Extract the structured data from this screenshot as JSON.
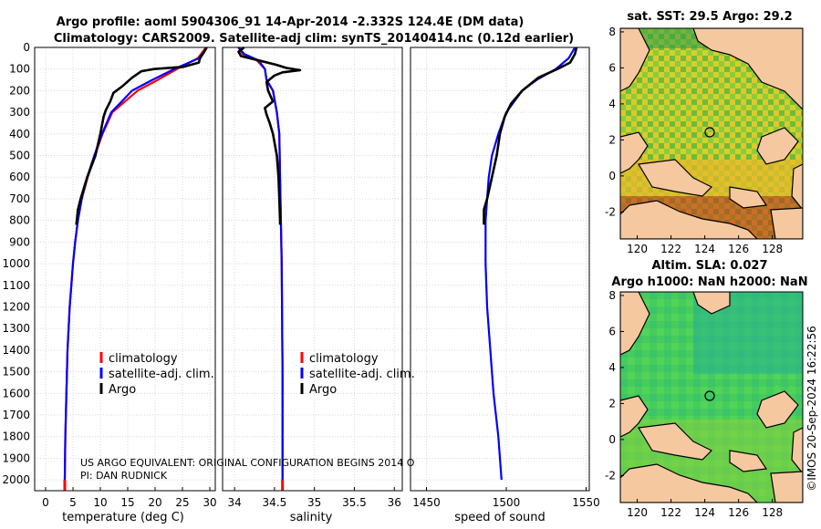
{
  "figure": {
    "title_line1": "Argo profile: aoml 5904306_91 14-Apr-2014 -2.332S 124.4E (DM data)",
    "title_line2": "Climatology: CARS2009. Satellite-adj clim: synTS_20140414.nc (0.12d earlier)",
    "note_line1": "US ARGO EQUIVALENT: ORIGINAL CONFIGURATION BEGINS 2014 O",
    "note_line2": "PI: DAN RUDNICK",
    "copyright": "©IMOS 20-Sep-2024 16:22:56"
  },
  "legend": {
    "climatology": "climatology",
    "satellite": "satellite-adj. clim.",
    "argo": "Argo"
  },
  "colors": {
    "climatology": "#ff0000",
    "satellite": "#0000ff",
    "argo": "#000000",
    "land": "#f5c8a0",
    "sla_sea": "#3cc864"
  },
  "chart_data": [
    {
      "type": "line",
      "name": "temperature",
      "xlabel": "temperature (deg C)",
      "ylabel": "",
      "xlim": [
        -2,
        31
      ],
      "ylim": [
        2050,
        0
      ],
      "xticks": [
        0,
        5,
        10,
        15,
        20,
        25,
        30
      ],
      "yticks": [
        0,
        100,
        200,
        300,
        400,
        500,
        600,
        700,
        800,
        900,
        1000,
        1100,
        1200,
        1300,
        1400,
        1500,
        1600,
        1700,
        1800,
        1900,
        2000
      ],
      "series": [
        {
          "name": "climatology",
          "y": [
            0,
            50,
            100,
            150,
            200,
            300,
            400,
            500,
            600,
            700,
            800,
            900,
            1000,
            1200,
            1400,
            1600,
            1800,
            2000,
            2050
          ],
          "x": [
            29.3,
            27.8,
            24.0,
            20.5,
            16.8,
            12.2,
            10.4,
            9.0,
            7.7,
            6.6,
            5.9,
            5.4,
            5.0,
            4.4,
            4.0,
            3.8,
            3.6,
            3.5,
            3.5
          ]
        },
        {
          "name": "satellite-adj. clim.",
          "y": [
            0,
            50,
            100,
            150,
            200,
            300,
            400,
            500,
            600,
            700,
            800,
            900,
            1000,
            1200,
            1400,
            1600,
            1800,
            2000,
            2050
          ],
          "x": [
            29.5,
            28.0,
            23.5,
            19.5,
            15.8,
            12.0,
            10.3,
            8.9,
            7.6,
            6.6,
            5.9,
            5.4,
            5.0,
            4.4,
            4.0,
            3.8,
            3.6,
            3.5,
            3.5
          ]
        },
        {
          "name": "Argo",
          "y": [
            0,
            20,
            50,
            70,
            90,
            100,
            110,
            140,
            180,
            210,
            250,
            290,
            320,
            400,
            500,
            600,
            700,
            750,
            800,
            820
          ],
          "x": [
            29.4,
            29.0,
            28.2,
            28.0,
            25.2,
            19.8,
            17.5,
            15.8,
            14.0,
            12.4,
            11.8,
            11.0,
            10.6,
            10.0,
            9.1,
            7.6,
            6.4,
            5.9,
            5.7,
            5.6
          ]
        }
      ]
    },
    {
      "type": "line",
      "name": "salinity",
      "xlabel": "salinity",
      "ylabel": "",
      "xlim": [
        33.85,
        36.1
      ],
      "ylim": [
        2050,
        0
      ],
      "xticks": [
        34,
        34.5,
        35,
        35.5,
        36
      ],
      "series": [
        {
          "name": "climatology",
          "y": [
            0,
            30,
            60,
            100,
            150,
            200,
            300,
            400,
            600,
            800,
            1000,
            1500,
            2000,
            2050
          ],
          "x": [
            34.05,
            34.1,
            34.28,
            34.38,
            34.4,
            34.48,
            34.53,
            34.56,
            34.57,
            34.58,
            34.59,
            34.6,
            34.6,
            34.6
          ]
        },
        {
          "name": "satellite-adj. clim.",
          "y": [
            0,
            30,
            60,
            100,
            150,
            200,
            300,
            400,
            600,
            800,
            1000,
            1500,
            2000,
            2050
          ],
          "x": [
            34.05,
            34.12,
            34.3,
            34.38,
            34.4,
            34.48,
            34.53,
            34.56,
            34.57,
            34.58,
            34.59,
            34.6,
            34.6,
            34.6
          ]
        },
        {
          "name": "Argo",
          "y": [
            0,
            20,
            40,
            60,
            80,
            95,
            105,
            115,
            130,
            160,
            200,
            250,
            280,
            310,
            350,
            400,
            500,
            600,
            700,
            800,
            820
          ],
          "x": [
            34.12,
            34.05,
            34.08,
            34.3,
            34.52,
            34.65,
            34.82,
            34.6,
            34.5,
            34.4,
            34.42,
            34.48,
            34.38,
            34.4,
            34.44,
            34.48,
            34.53,
            34.55,
            34.56,
            34.57,
            34.57
          ]
        }
      ]
    },
    {
      "type": "line",
      "name": "speed of sound",
      "xlabel": "speed of sound",
      "ylabel": "",
      "xlim": [
        1440,
        1552
      ],
      "ylim": [
        2050,
        0
      ],
      "xticks": [
        1450,
        1500,
        1550
      ],
      "series": [
        {
          "name": "satellite-adj. clim.",
          "y": [
            0,
            50,
            100,
            150,
            200,
            300,
            400,
            500,
            600,
            700,
            800,
            900,
            1000,
            1200,
            1400,
            1600,
            1800,
            2000
          ],
          "x": [
            1543,
            1539,
            1531,
            1519,
            1510,
            1500,
            1495,
            1491,
            1489,
            1488,
            1487,
            1487,
            1487,
            1488,
            1490,
            1492,
            1495,
            1497
          ]
        },
        {
          "name": "Argo",
          "y": [
            0,
            30,
            70,
            100,
            140,
            200,
            260,
            320,
            400,
            500,
            600,
            700,
            750,
            800,
            820
          ],
          "x": [
            1544,
            1543,
            1540,
            1532,
            1520,
            1510,
            1503,
            1499,
            1496,
            1494,
            1491,
            1488,
            1486,
            1486,
            1486
          ]
        }
      ]
    },
    {
      "type": "heatmap",
      "name": "sst map",
      "title": "sat. SST: 29.5 Argo: 29.2",
      "xlim": [
        119,
        129.8
      ],
      "ylim": [
        -3.5,
        8.2
      ],
      "xticks": [
        120,
        122,
        124,
        126,
        128
      ],
      "yticks": [
        -2,
        0,
        2,
        4,
        6,
        8
      ],
      "marker": {
        "lon": 124.4,
        "lat": 2.3
      }
    },
    {
      "type": "heatmap",
      "name": "sla map",
      "title_line1": "Altim. SLA: 0.027",
      "title_line2": "Argo h1000: NaN h2000: NaN",
      "xlim": [
        119,
        129.8
      ],
      "ylim": [
        -3.5,
        8.2
      ],
      "xticks": [
        120,
        122,
        124,
        126,
        128
      ],
      "yticks": [
        -2,
        0,
        2,
        4,
        6,
        8
      ],
      "marker": {
        "lon": 124.4,
        "lat": 2.3
      }
    }
  ]
}
